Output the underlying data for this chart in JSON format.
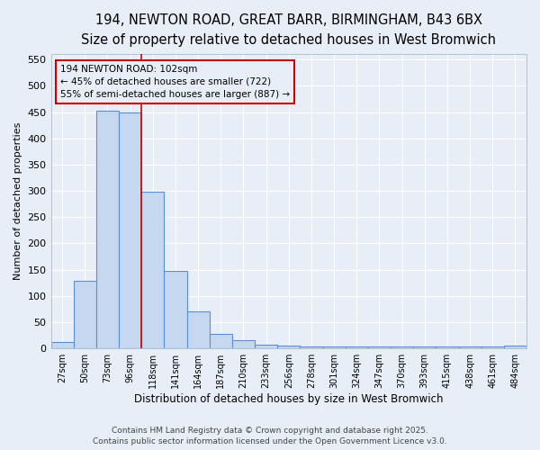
{
  "title1": "194, NEWTON ROAD, GREAT BARR, BIRMINGHAM, B43 6BX",
  "title2": "Size of property relative to detached houses in West Bromwich",
  "xlabel": "Distribution of detached houses by size in West Bromwich",
  "ylabel": "Number of detached properties",
  "categories": [
    "27sqm",
    "50sqm",
    "73sqm",
    "96sqm",
    "118sqm",
    "141sqm",
    "164sqm",
    "187sqm",
    "210sqm",
    "233sqm",
    "256sqm",
    "278sqm",
    "301sqm",
    "324sqm",
    "347sqm",
    "370sqm",
    "393sqm",
    "415sqm",
    "438sqm",
    "461sqm",
    "484sqm"
  ],
  "values": [
    13,
    128,
    452,
    449,
    298,
    148,
    70,
    27,
    15,
    7,
    5,
    4,
    3,
    3,
    3,
    3,
    3,
    3,
    3,
    3,
    5
  ],
  "bar_color": "#c5d8f0",
  "bar_edge_color": "#5b8fd4",
  "bg_color": "#e8eef8",
  "grid_color": "#ffffff",
  "annotation_text": "194 NEWTON ROAD: 102sqm\n← 45% of detached houses are smaller (722)\n55% of semi-detached houses are larger (887) →",
  "annotation_box_color": "#cc0000",
  "vline_color": "#cc0000",
  "ylim": [
    0,
    560
  ],
  "yticks": [
    0,
    50,
    100,
    150,
    200,
    250,
    300,
    350,
    400,
    450,
    500,
    550
  ],
  "footer_text": "Contains HM Land Registry data © Crown copyright and database right 2025.\nContains public sector information licensed under the Open Government Licence v3.0.",
  "title_fontsize": 10.5,
  "subtitle_fontsize": 9.5,
  "vline_pos": 3.5
}
